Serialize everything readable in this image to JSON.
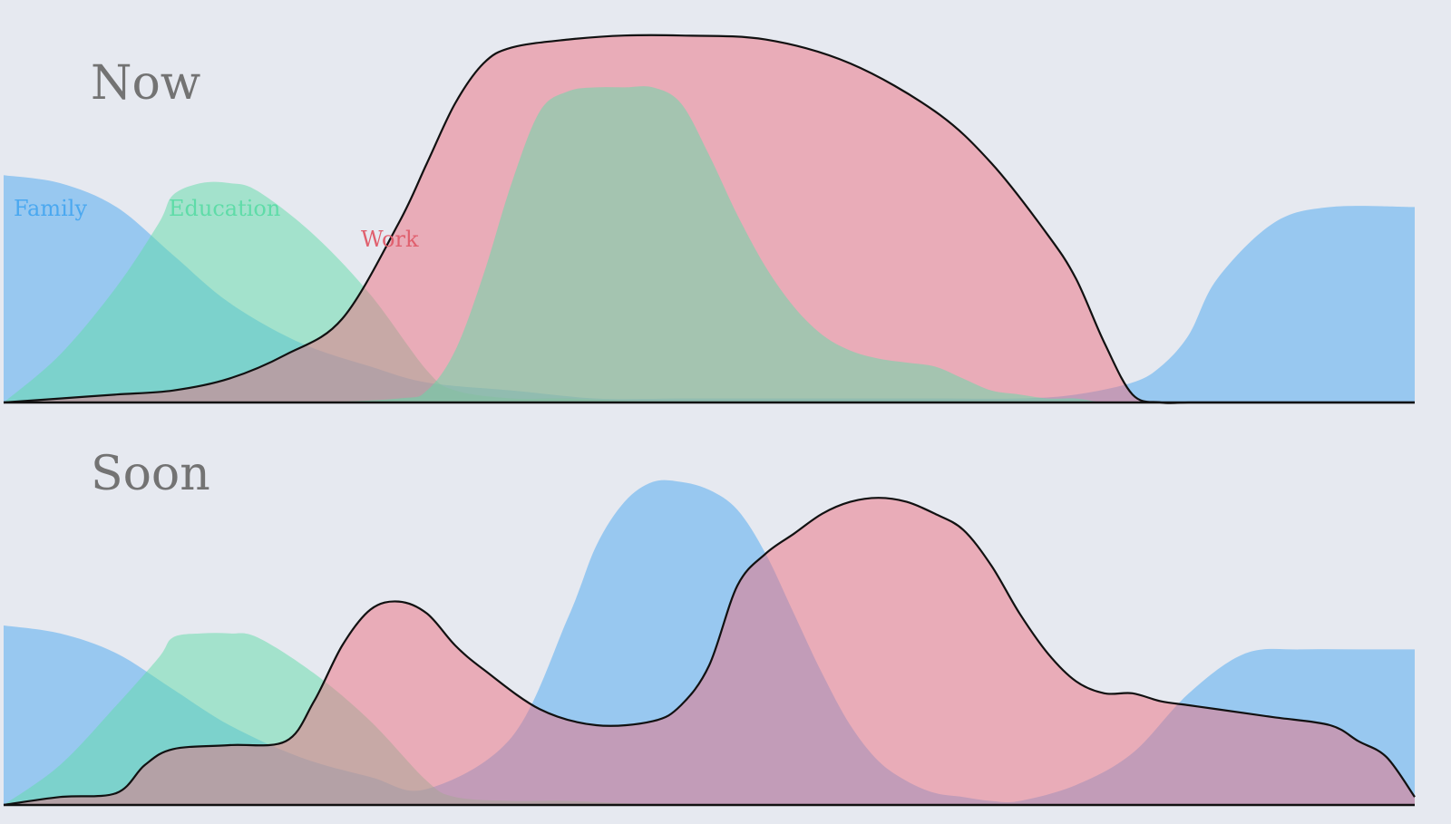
{
  "chart_data": {
    "type": "area",
    "colors": {
      "background": "#e6e9f0",
      "family": "#4aa8f0",
      "education": "#5fdca8",
      "work": "#ec6f7f",
      "outline": "#111111",
      "title": "#737373"
    },
    "legend": [
      {
        "key": "family",
        "name": "Family",
        "color": "#4aa8f0"
      },
      {
        "key": "education",
        "name": "Education",
        "color": "#5fdca8"
      },
      {
        "key": "work",
        "name": "Work",
        "color": "#e0606e"
      }
    ],
    "panels": [
      {
        "title": "Now",
        "series": [
          {
            "key": "family",
            "x": [
              0,
              4,
              8,
              12,
              16,
              21,
              26,
              30,
              36,
              42,
              48,
              54,
              60,
              66,
              72,
              76,
              80,
              82,
              84,
              86,
              90,
              94,
              100
            ],
            "y": [
              0.57,
              0.55,
              0.49,
              0.37,
              0.25,
              0.15,
              0.09,
              0.05,
              0.03,
              0.01,
              0.01,
              0.01,
              0.01,
              0.01,
              0.01,
              0.02,
              0.05,
              0.09,
              0.17,
              0.31,
              0.45,
              0.49,
              0.49
            ]
          },
          {
            "key": "education",
            "x": [
              0,
              4,
              8,
              11,
              12,
              14,
              16,
              18,
              22,
              26,
              30,
              32,
              36,
              40,
              48,
              60,
              72,
              84,
              100
            ],
            "y": [
              0.0,
              0.12,
              0.29,
              0.45,
              0.52,
              0.55,
              0.55,
              0.53,
              0.42,
              0.27,
              0.08,
              0.03,
              0.01,
              0.01,
              0.0,
              0.0,
              0.0,
              0.0,
              0.0
            ]
          },
          {
            "key": "work",
            "x": [
              0,
              4,
              8,
              12,
              16,
              20,
              24,
              28,
              30,
              32,
              34,
              36,
              40,
              44,
              48,
              54,
              60,
              66,
              70,
              74,
              76,
              78,
              80,
              82,
              84,
              86,
              88,
              92,
              100
            ],
            "y": [
              0.0,
              0.01,
              0.02,
              0.03,
              0.06,
              0.12,
              0.21,
              0.45,
              0.6,
              0.75,
              0.85,
              0.89,
              0.91,
              0.92,
              0.92,
              0.91,
              0.85,
              0.73,
              0.6,
              0.42,
              0.31,
              0.15,
              0.02,
              0.0,
              0.0,
              0.0,
              0.0,
              0.0,
              0.0
            ]
          },
          {
            "key": "education",
            "x": [
              0,
              20,
              28,
              30,
              32,
              34,
              36,
              38,
              40,
              42,
              44,
              46,
              48,
              50,
              52,
              54,
              56,
              58,
              60,
              62,
              64,
              66,
              68,
              70,
              72,
              74,
              76,
              78,
              80,
              82,
              84,
              100
            ],
            "y": [
              0.0,
              0.0,
              0.01,
              0.03,
              0.13,
              0.32,
              0.55,
              0.73,
              0.78,
              0.79,
              0.79,
              0.79,
              0.75,
              0.62,
              0.47,
              0.34,
              0.24,
              0.17,
              0.13,
              0.11,
              0.1,
              0.09,
              0.06,
              0.03,
              0.02,
              0.01,
              0.01,
              0.0,
              0.0,
              0.0,
              0.0,
              0.0
            ]
          }
        ]
      },
      {
        "title": "Soon",
        "series": [
          {
            "key": "family",
            "x": [
              0,
              4,
              8,
              12,
              16,
              21,
              26,
              30,
              36,
              40,
              42,
              44,
              46,
              48,
              50,
              52,
              54,
              56,
              58,
              60,
              62,
              64,
              66,
              68,
              70,
              72,
              76,
              80,
              84,
              88,
              92,
              96,
              100
            ],
            "y": [
              0.45,
              0.43,
              0.38,
              0.29,
              0.2,
              0.12,
              0.07,
              0.04,
              0.17,
              0.47,
              0.65,
              0.76,
              0.81,
              0.81,
              0.79,
              0.74,
              0.63,
              0.48,
              0.33,
              0.2,
              0.11,
              0.06,
              0.03,
              0.02,
              0.01,
              0.01,
              0.05,
              0.13,
              0.28,
              0.38,
              0.39,
              0.39,
              0.39
            ]
          },
          {
            "key": "education",
            "x": [
              0,
              4,
              8,
              11,
              12,
              14,
              16,
              18,
              22,
              26,
              30,
              32,
              36,
              40,
              48,
              60,
              72,
              84,
              100
            ],
            "y": [
              0.0,
              0.1,
              0.25,
              0.37,
              0.42,
              0.43,
              0.43,
              0.42,
              0.33,
              0.21,
              0.06,
              0.02,
              0.01,
              0.01,
              0.0,
              0.0,
              0.0,
              0.0,
              0.0
            ]
          },
          {
            "key": "work",
            "x": [
              0,
              4,
              8,
              10,
              12,
              16,
              20,
              22,
              24,
              26,
              28,
              30,
              32,
              34,
              38,
              42,
              46,
              48,
              50,
              52,
              54,
              56,
              58,
              60,
              62,
              64,
              66,
              68,
              70,
              72,
              74,
              76,
              78,
              80,
              82,
              84,
              86,
              90,
              94,
              96,
              98,
              100
            ],
            "y": [
              0.0,
              0.02,
              0.03,
              0.1,
              0.14,
              0.15,
              0.16,
              0.26,
              0.4,
              0.49,
              0.51,
              0.48,
              0.4,
              0.34,
              0.24,
              0.2,
              0.21,
              0.25,
              0.35,
              0.55,
              0.63,
              0.68,
              0.73,
              0.76,
              0.77,
              0.76,
              0.73,
              0.69,
              0.6,
              0.48,
              0.38,
              0.31,
              0.28,
              0.28,
              0.26,
              0.25,
              0.24,
              0.22,
              0.2,
              0.16,
              0.12,
              0.02
            ]
          }
        ]
      }
    ]
  }
}
